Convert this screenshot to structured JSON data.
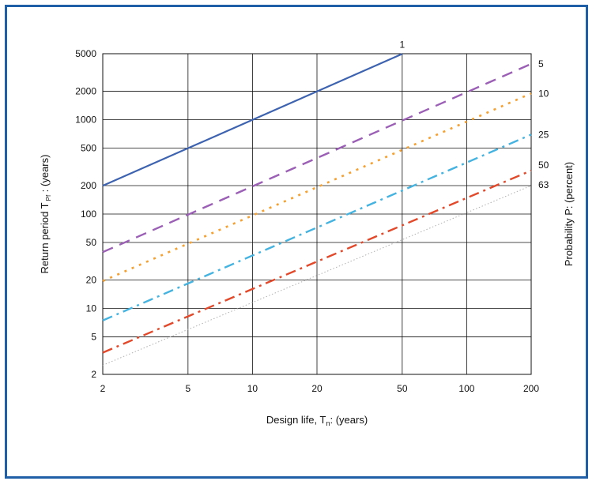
{
  "chart_data": {
    "type": "line",
    "title": "",
    "xlabel": "Design life, T",
    "xlabel_sub": "n",
    "xlabel_tail": ": (years)",
    "ylabel": "Return period T",
    "ylabel_sub": "Pf",
    "ylabel_tail": " : (years)",
    "y2label": "Probability P:  (percent)",
    "x_scale": "log",
    "y_scale": "log",
    "xlim": [
      2,
      200
    ],
    "ylim": [
      2,
      5000
    ],
    "grid": true,
    "x_ticks": [
      2,
      5,
      10,
      20,
      50,
      100,
      200
    ],
    "x_tick_labels": [
      "2",
      "5",
      "10",
      "20",
      "50",
      "100",
      "200"
    ],
    "y_ticks": [
      2,
      5,
      10,
      20,
      50,
      100,
      200,
      500,
      1000,
      2000,
      5000
    ],
    "y_tick_labels": [
      "2",
      "5",
      "10",
      "20",
      "50",
      "100",
      "200",
      "500",
      "1000",
      "2000",
      "5000"
    ],
    "series": [
      {
        "name": "1",
        "color": "#3d63b0",
        "dash": "solid",
        "points": [
          [
            2,
            199.5
          ],
          [
            50,
            4975
          ]
        ]
      },
      {
        "name": "5",
        "color": "#9b5fb5",
        "dash": "dash",
        "points": [
          [
            2,
            39.5
          ],
          [
            200,
            3900
          ]
        ]
      },
      {
        "name": "10",
        "color": "#f5a030",
        "dash": "dot",
        "points": [
          [
            2,
            19.5
          ],
          [
            200,
            1898
          ]
        ]
      },
      {
        "name": "25",
        "color": "#45b3e0",
        "dash": "dashdot",
        "points": [
          [
            2,
            7.45
          ],
          [
            200,
            695
          ]
        ]
      },
      {
        "name": "50",
        "color": "#e2482a",
        "dash": "dashdot",
        "points": [
          [
            2,
            3.4
          ],
          [
            200,
            289
          ]
        ]
      },
      {
        "name": "63",
        "color": "#b0b0b0",
        "dash": "dotfine",
        "points": [
          [
            2,
            2.5
          ],
          [
            200,
            200
          ]
        ]
      }
    ]
  }
}
